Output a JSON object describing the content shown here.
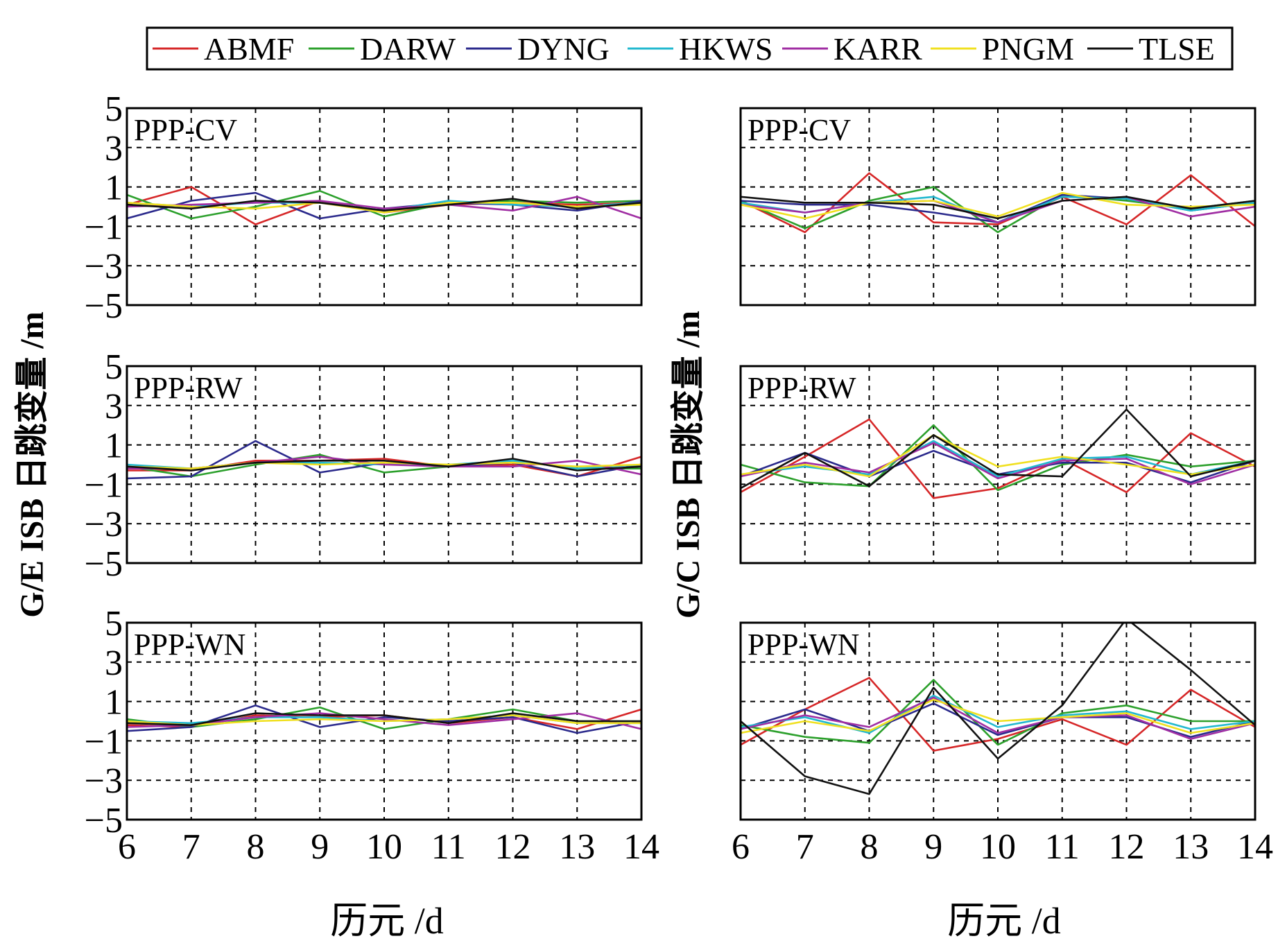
{
  "legend": {
    "items": [
      {
        "name": "ABMF",
        "color": "#d62728"
      },
      {
        "name": "DARW",
        "color": "#2ca02c"
      },
      {
        "name": "DYNG",
        "color": "#2b2a8c"
      },
      {
        "name": "HKWS",
        "color": "#22b8cf"
      },
      {
        "name": "KARR",
        "color": "#a02ea3"
      },
      {
        "name": "PNGM",
        "color": "#f0e020"
      },
      {
        "name": "TLSE",
        "color": "#111111"
      }
    ]
  },
  "left_ylabel": "G/E ISB 日跳变量 /m",
  "right_ylabel": "G/C ISB 日跳变量 /m",
  "xlabel": "历元 /d",
  "chart_data": [
    {
      "type": "line",
      "panel": "left-top",
      "title": "PPP-CV",
      "x": [
        6,
        7,
        8,
        9,
        10,
        11,
        12,
        13,
        14
      ],
      "xlim": [
        6,
        14
      ],
      "ylim": [
        -5,
        5
      ],
      "xticks": [
        "6",
        "7",
        "8",
        "9",
        "10",
        "11",
        "12",
        "13",
        "14"
      ],
      "yticks": [
        "5",
        "3",
        "1",
        "−1",
        "−3",
        "−5"
      ],
      "grid": true,
      "series": [
        {
          "name": "ABMF",
          "values": [
            0.1,
            1.0,
            -0.9,
            0.3,
            -0.3,
            0.1,
            0.2,
            0.1,
            0.2
          ]
        },
        {
          "name": "DARW",
          "values": [
            0.6,
            -0.6,
            0.0,
            0.8,
            -0.5,
            0.2,
            0.3,
            0.2,
            0.3
          ]
        },
        {
          "name": "DYNG",
          "values": [
            -0.6,
            0.3,
            0.7,
            -0.6,
            -0.1,
            0.2,
            0.1,
            -0.2,
            0.3
          ]
        },
        {
          "name": "HKWS",
          "values": [
            0.2,
            0.0,
            0.2,
            0.2,
            -0.2,
            0.3,
            0.1,
            0.0,
            0.2
          ]
        },
        {
          "name": "KARR",
          "values": [
            0.0,
            0.1,
            0.2,
            0.3,
            -0.1,
            0.1,
            -0.2,
            0.5,
            -0.6
          ]
        },
        {
          "name": "PNGM",
          "values": [
            0.2,
            0.0,
            -0.1,
            0.2,
            -0.3,
            0.2,
            0.2,
            0.0,
            0.1
          ]
        },
        {
          "name": "TLSE",
          "values": [
            0.1,
            -0.1,
            0.3,
            0.2,
            -0.2,
            0.1,
            0.4,
            -0.1,
            0.2
          ]
        }
      ]
    },
    {
      "type": "line",
      "panel": "right-top",
      "title": "PPP-CV",
      "x": [
        6,
        7,
        8,
        9,
        10,
        11,
        12,
        13,
        14
      ],
      "xlim": [
        6,
        14
      ],
      "ylim": [
        -5,
        5
      ],
      "xticks": [
        "6",
        "7",
        "8",
        "9",
        "10",
        "11",
        "12",
        "13",
        "14"
      ],
      "yticks": [],
      "grid": true,
      "series": [
        {
          "name": "ABMF",
          "values": [
            0.3,
            -1.3,
            1.7,
            -0.8,
            -0.9,
            0.5,
            -0.9,
            1.6,
            -1.0
          ]
        },
        {
          "name": "DARW",
          "values": [
            0.3,
            -1.1,
            0.3,
            1.0,
            -1.3,
            0.6,
            0.3,
            -0.1,
            0.3
          ]
        },
        {
          "name": "DYNG",
          "values": [
            0.3,
            0.1,
            0.1,
            -0.3,
            -0.8,
            0.6,
            0.4,
            -0.2,
            0.2
          ]
        },
        {
          "name": "HKWS",
          "values": [
            0.2,
            -0.3,
            0.2,
            0.5,
            -0.8,
            0.5,
            0.4,
            -0.2,
            0.2
          ]
        },
        {
          "name": "KARR",
          "values": [
            0.1,
            -0.3,
            0.2,
            0.3,
            -0.8,
            0.3,
            0.5,
            -0.5,
            0.0
          ]
        },
        {
          "name": "PNGM",
          "values": [
            0.1,
            -0.6,
            0.2,
            0.3,
            -0.5,
            0.7,
            0.1,
            0.0,
            0.1
          ]
        },
        {
          "name": "TLSE",
          "values": [
            0.5,
            0.2,
            0.2,
            0.1,
            -0.6,
            0.3,
            0.5,
            -0.1,
            0.3
          ]
        }
      ]
    },
    {
      "type": "line",
      "panel": "left-middle",
      "title": "PPP-RW",
      "x": [
        6,
        7,
        8,
        9,
        10,
        11,
        12,
        13,
        14
      ],
      "xlim": [
        6,
        14
      ],
      "ylim": [
        -5,
        5
      ],
      "xticks": [
        "6",
        "7",
        "8",
        "9",
        "10",
        "11",
        "12",
        "13",
        "14"
      ],
      "yticks": [
        "5",
        "3",
        "1",
        "−1",
        "−3",
        "−5"
      ],
      "grid": true,
      "series": [
        {
          "name": "ABMF",
          "values": [
            -0.3,
            -0.3,
            0.2,
            0.2,
            0.3,
            -0.1,
            0.0,
            -0.6,
            0.4
          ]
        },
        {
          "name": "DARW",
          "values": [
            -0.1,
            -0.6,
            0.0,
            0.5,
            -0.4,
            -0.1,
            0.2,
            -0.2,
            -0.2
          ]
        },
        {
          "name": "DYNG",
          "values": [
            -0.7,
            -0.6,
            1.2,
            -0.4,
            0.1,
            -0.1,
            0.1,
            -0.6,
            0.0
          ]
        },
        {
          "name": "HKWS",
          "values": [
            0.0,
            -0.2,
            0.1,
            0.1,
            0.0,
            0.0,
            0.2,
            -0.2,
            0.0
          ]
        },
        {
          "name": "KARR",
          "values": [
            -0.2,
            -0.2,
            0.1,
            0.4,
            0.0,
            -0.1,
            -0.1,
            0.2,
            -0.5
          ]
        },
        {
          "name": "PNGM",
          "values": [
            -0.1,
            -0.2,
            0.1,
            0.0,
            0.1,
            0.0,
            0.1,
            -0.1,
            0.0
          ]
        },
        {
          "name": "TLSE",
          "values": [
            -0.1,
            -0.3,
            0.1,
            0.2,
            0.2,
            -0.1,
            0.3,
            -0.3,
            -0.1
          ]
        }
      ]
    },
    {
      "type": "line",
      "panel": "right-middle",
      "title": "PPP-RW",
      "x": [
        6,
        7,
        8,
        9,
        10,
        11,
        12,
        13,
        14
      ],
      "xlim": [
        6,
        14
      ],
      "ylim": [
        -5,
        5
      ],
      "xticks": [
        "6",
        "7",
        "8",
        "9",
        "10",
        "11",
        "12",
        "13",
        "14"
      ],
      "yticks": [],
      "grid": true,
      "series": [
        {
          "name": "ABMF",
          "values": [
            -1.4,
            0.4,
            2.3,
            -1.7,
            -1.2,
            0.3,
            -1.4,
            1.6,
            -0.1
          ]
        },
        {
          "name": "DARW",
          "values": [
            0.0,
            -0.9,
            -1.1,
            2.0,
            -1.3,
            0.0,
            0.5,
            -0.1,
            0.2
          ]
        },
        {
          "name": "DYNG",
          "values": [
            -0.6,
            0.6,
            -0.6,
            0.7,
            -0.5,
            0.1,
            0.1,
            -0.9,
            0.2
          ]
        },
        {
          "name": "HKWS",
          "values": [
            -0.5,
            -0.1,
            -0.5,
            1.2,
            -0.6,
            0.3,
            0.4,
            -0.5,
            0.2
          ]
        },
        {
          "name": "KARR",
          "values": [
            -0.6,
            0.1,
            -0.4,
            1.1,
            -0.7,
            0.2,
            0.3,
            -1.0,
            0.0
          ]
        },
        {
          "name": "PNGM",
          "values": [
            -0.5,
            0.0,
            -0.6,
            1.5,
            -0.1,
            0.4,
            0.0,
            -0.5,
            0.0
          ]
        },
        {
          "name": "TLSE",
          "values": [
            -1.2,
            0.6,
            -1.1,
            1.5,
            -0.5,
            -0.6,
            2.8,
            -0.6,
            0.2
          ]
        }
      ]
    },
    {
      "type": "line",
      "panel": "left-bottom",
      "title": "PPP-WN",
      "x": [
        6,
        7,
        8,
        9,
        10,
        11,
        12,
        13,
        14
      ],
      "xlim": [
        6,
        14
      ],
      "ylim": [
        -5,
        5
      ],
      "xticks": [
        "6",
        "7",
        "8",
        "9",
        "10",
        "11",
        "12",
        "13",
        "14"
      ],
      "yticks": [
        "5",
        "3",
        "1",
        "−1",
        "−3",
        "−5"
      ],
      "grid": true,
      "series": [
        {
          "name": "ABMF",
          "values": [
            -0.2,
            -0.3,
            0.3,
            0.2,
            0.3,
            -0.1,
            0.2,
            -0.4,
            0.6
          ]
        },
        {
          "name": "DARW",
          "values": [
            0.1,
            -0.3,
            0.1,
            0.7,
            -0.4,
            0.1,
            0.6,
            0.0,
            0.0
          ]
        },
        {
          "name": "DYNG",
          "values": [
            -0.5,
            -0.3,
            0.8,
            -0.3,
            0.2,
            0.0,
            0.2,
            -0.6,
            0.0
          ]
        },
        {
          "name": "HKWS",
          "values": [
            0.0,
            -0.1,
            0.2,
            0.2,
            0.0,
            0.1,
            0.3,
            -0.1,
            -0.1
          ]
        },
        {
          "name": "KARR",
          "values": [
            -0.3,
            -0.2,
            0.2,
            0.4,
            0.1,
            -0.2,
            0.1,
            0.4,
            -0.4
          ]
        },
        {
          "name": "PNGM",
          "values": [
            0.0,
            -0.2,
            0.0,
            0.1,
            0.0,
            0.1,
            0.3,
            -0.1,
            -0.1
          ]
        },
        {
          "name": "TLSE",
          "values": [
            -0.1,
            -0.2,
            0.4,
            0.3,
            0.3,
            -0.1,
            0.4,
            0.0,
            0.0
          ]
        }
      ]
    },
    {
      "type": "line",
      "panel": "right-bottom",
      "title": "PPP-WN",
      "x": [
        6,
        7,
        8,
        9,
        10,
        11,
        12,
        13,
        14
      ],
      "xlim": [
        6,
        14
      ],
      "ylim": [
        -5,
        5
      ],
      "xticks": [
        "6",
        "7",
        "8",
        "9",
        "10",
        "11",
        "12",
        "13",
        "14"
      ],
      "yticks": [],
      "grid": true,
      "series": [
        {
          "name": "ABMF",
          "values": [
            -1.2,
            0.6,
            2.2,
            -1.5,
            -0.9,
            0.1,
            -1.2,
            1.6,
            -0.3
          ]
        },
        {
          "name": "DARW",
          "values": [
            -0.2,
            -0.8,
            -1.1,
            2.1,
            -1.2,
            0.4,
            0.8,
            0.0,
            0.0
          ]
        },
        {
          "name": "DYNG",
          "values": [
            -0.4,
            0.6,
            -0.5,
            0.9,
            -0.7,
            0.2,
            0.2,
            -0.8,
            0.0
          ]
        },
        {
          "name": "HKWS",
          "values": [
            -0.3,
            0.2,
            -0.6,
            1.3,
            -0.3,
            0.3,
            0.5,
            -0.4,
            0.0
          ]
        },
        {
          "name": "KARR",
          "values": [
            -0.4,
            0.3,
            -0.3,
            1.2,
            -0.6,
            0.2,
            0.3,
            -0.9,
            -0.1
          ]
        },
        {
          "name": "PNGM",
          "values": [
            -0.6,
            0.0,
            -0.5,
            1.1,
            0.0,
            0.2,
            0.4,
            -0.6,
            -0.1
          ]
        },
        {
          "name": "TLSE",
          "values": [
            0.0,
            -2.8,
            -3.7,
            1.7,
            -1.9,
            0.8,
            5.2,
            2.6,
            -0.2
          ]
        }
      ]
    }
  ]
}
